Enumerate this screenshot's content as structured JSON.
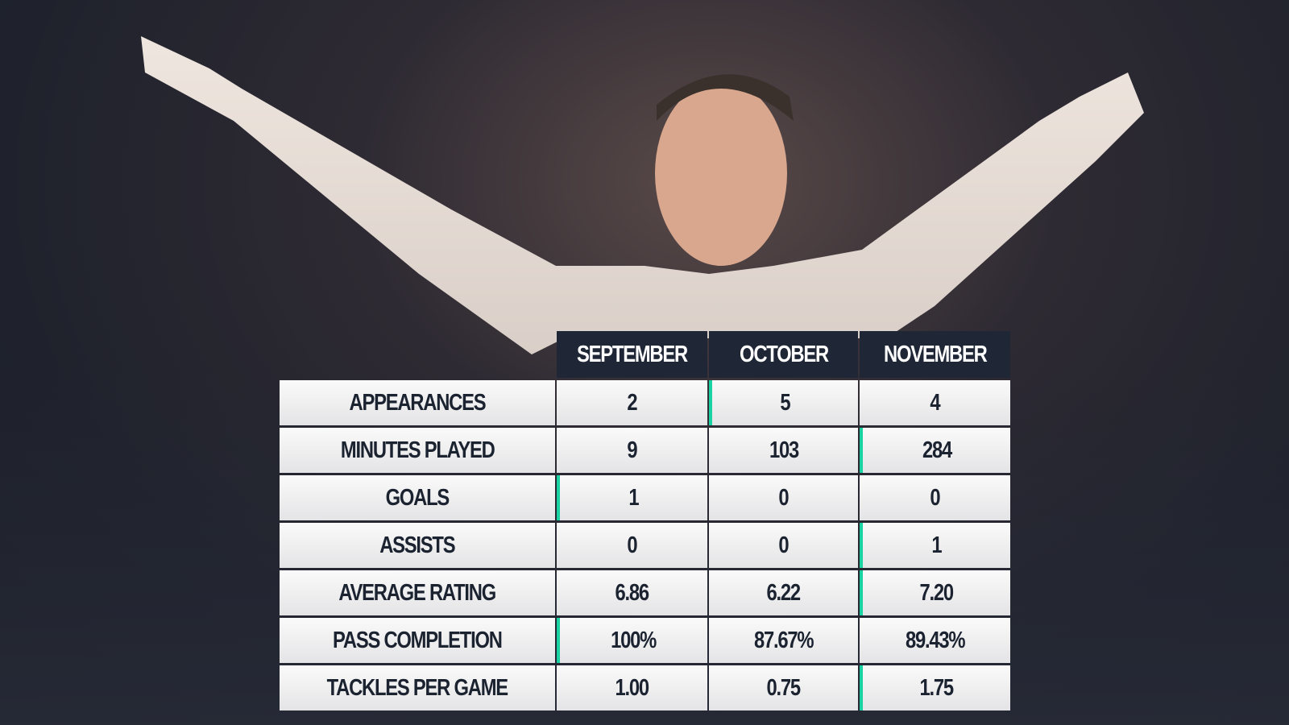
{
  "table": {
    "header": [
      "SEPTEMBER",
      "OCTOBER",
      "NOVEMBER"
    ],
    "rows": [
      [
        "APPEARANCES",
        "2",
        "5",
        "4"
      ],
      [
        "MINUTES PLAYED",
        "9",
        "103",
        "284"
      ],
      [
        "GOALS",
        "1",
        "0",
        "0"
      ],
      [
        "ASSISTS",
        "0",
        "0",
        "1"
      ],
      [
        "AVERAGE RATING",
        "6.86",
        "6.22",
        "7.20"
      ],
      [
        "PASS COMPLETION",
        "100%",
        "87.67%",
        "89.43%"
      ],
      [
        "TACKLES PER GAME",
        "1.00",
        "0.75",
        "1.75"
      ]
    ]
  }
}
